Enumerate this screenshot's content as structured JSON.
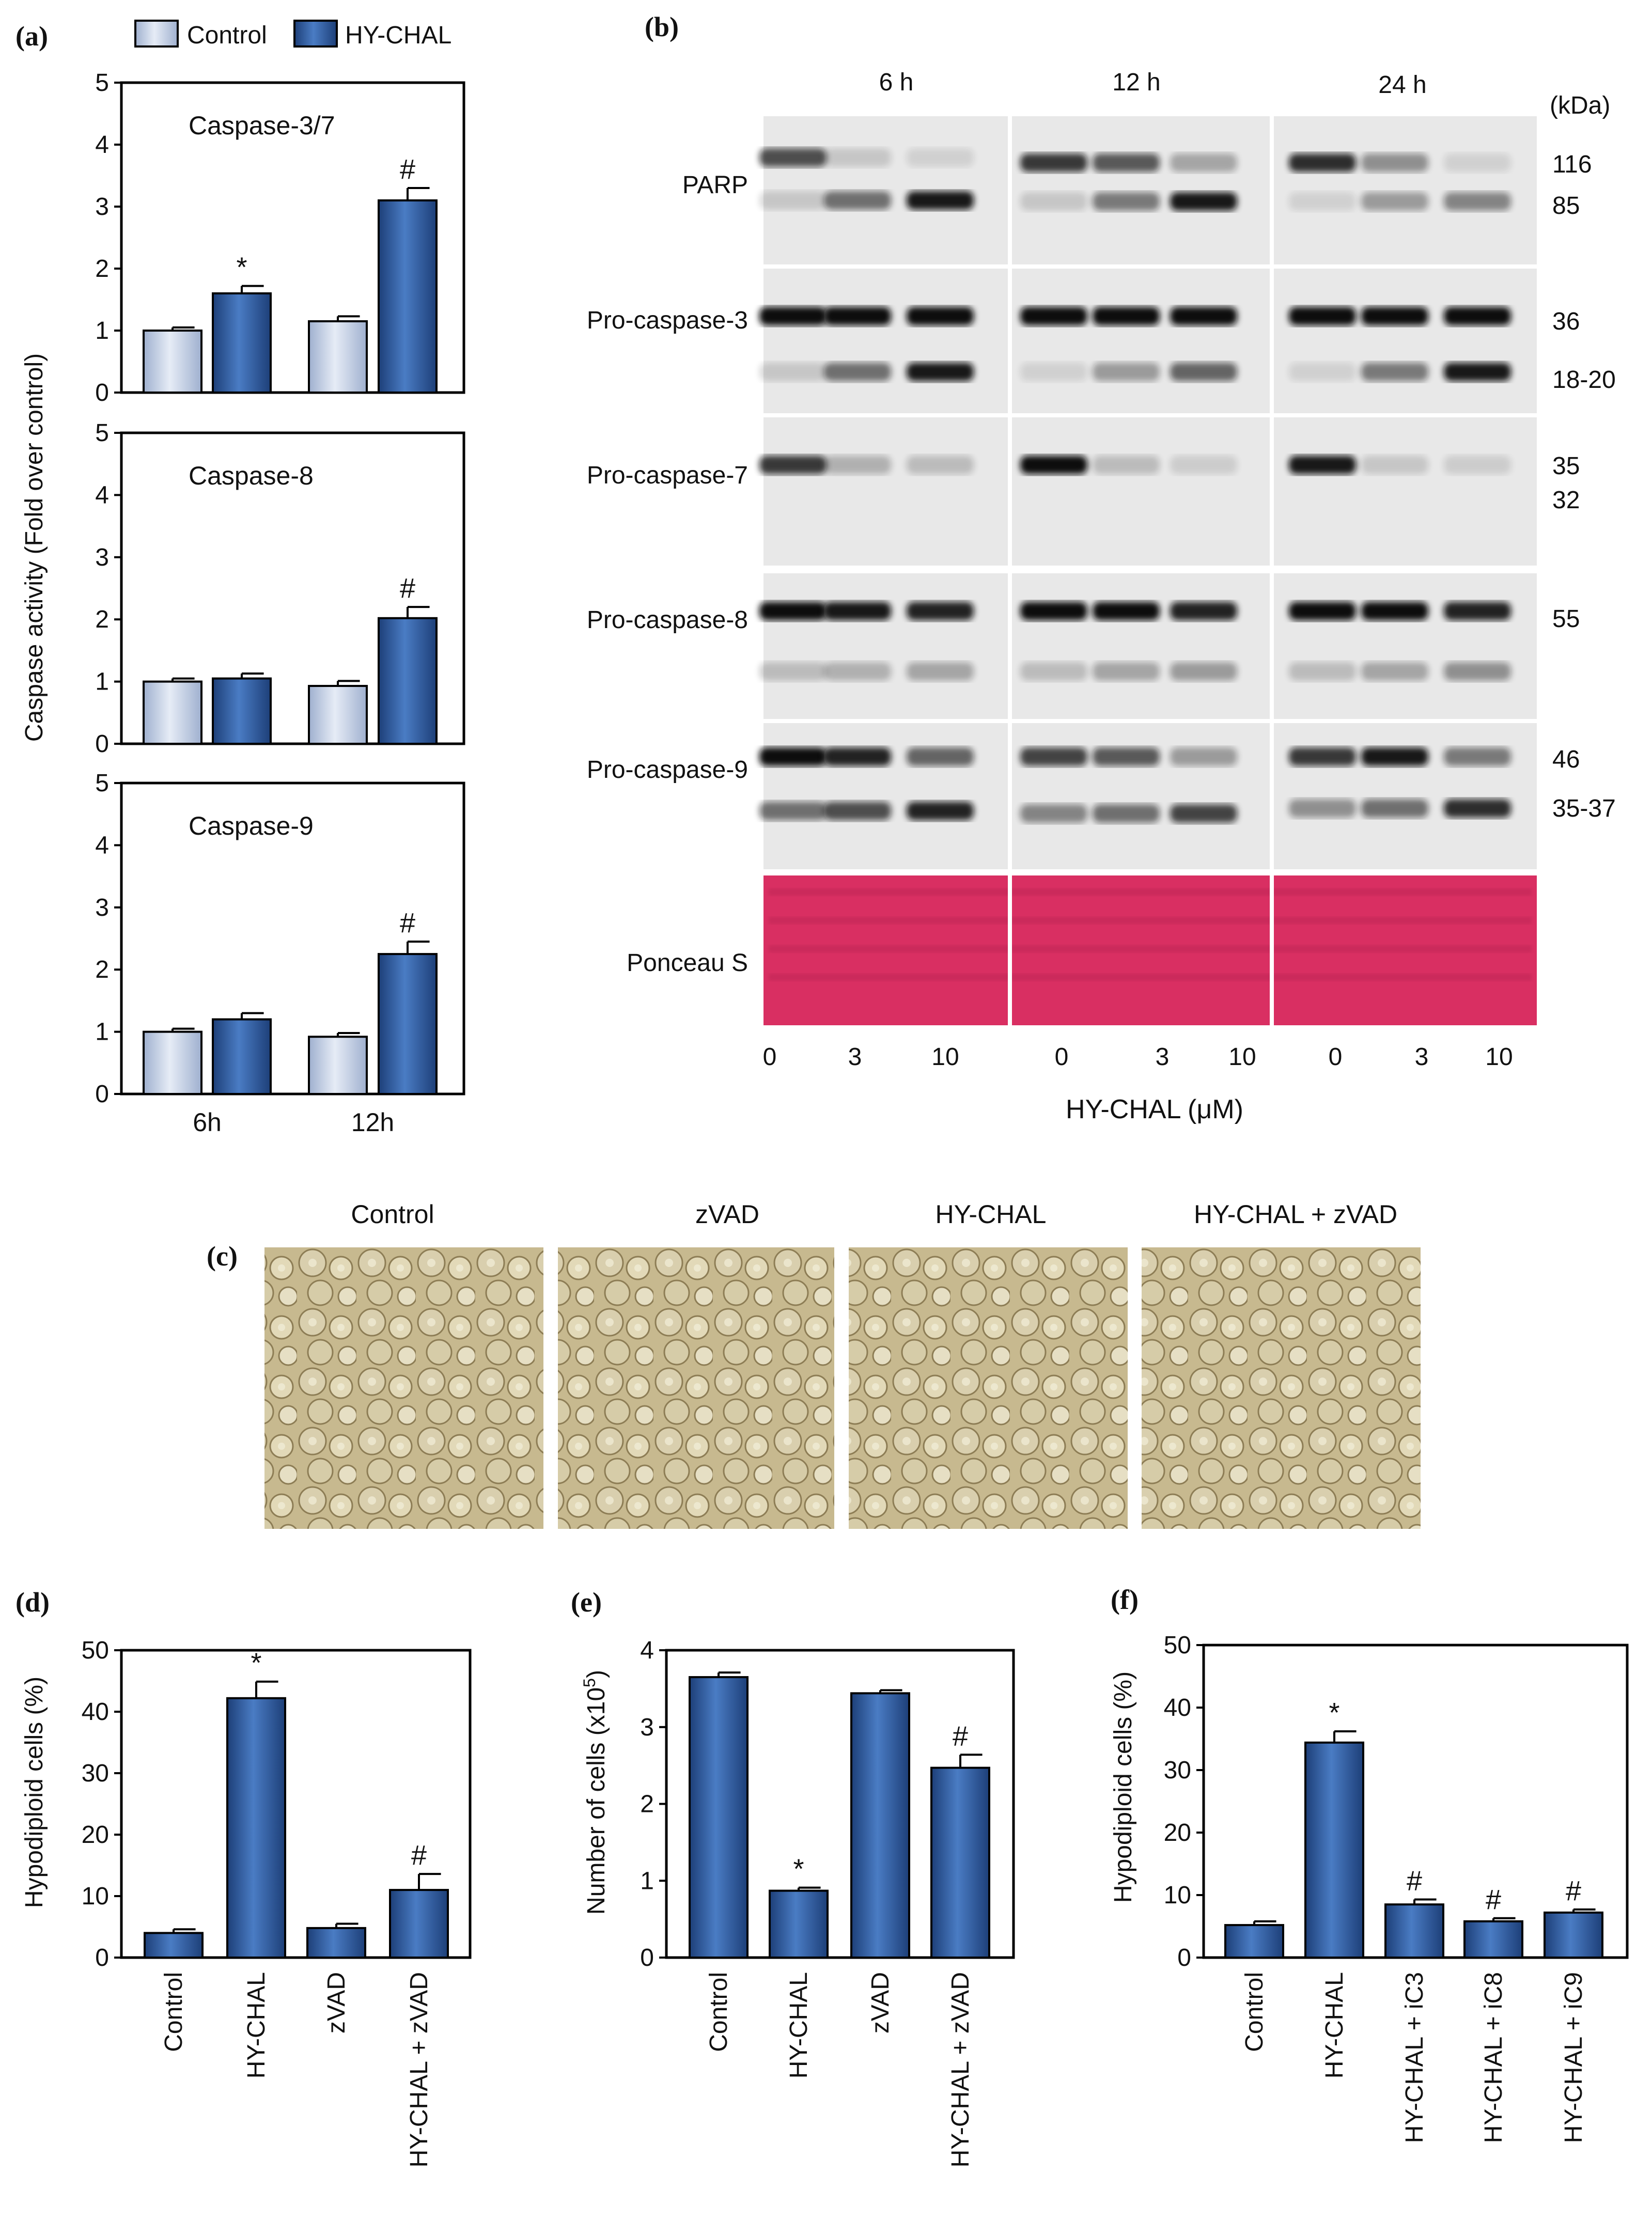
{
  "panel_labels": {
    "a": "(a)",
    "b": "(b)",
    "c": "(c)",
    "d": "(d)",
    "e": "(e)",
    "f": "(f)"
  },
  "colors": {
    "control_fill": "#c9d3e6",
    "hychal_fill": "#2f5b9f",
    "ponceau": "#d92f62",
    "blot_bg": "#e8e8e8"
  },
  "legend": {
    "control": "Control",
    "hychal": "HY-CHAL"
  },
  "panel_a": {
    "ylabel": "Caspase activity (Fold over control)",
    "x_labels": [
      "6h",
      "12h"
    ]
  },
  "panel_b": {
    "time_labels": [
      "6 h",
      "12 h",
      "24 h"
    ],
    "kda_label": "(kDa)",
    "rows": [
      {
        "name": "PARP",
        "kda": [
          "116",
          "85"
        ]
      },
      {
        "name": "Pro-caspase-3",
        "kda": [
          "36",
          "18-20"
        ]
      },
      {
        "name": "Pro-caspase-7",
        "kda": [
          "35",
          "32"
        ]
      },
      {
        "name": "Pro-caspase-8",
        "kda": [
          "55"
        ]
      },
      {
        "name": "Pro-caspase-9",
        "kda": [
          "46",
          "35-37"
        ]
      },
      {
        "name": "Ponceau S",
        "kda": []
      }
    ],
    "dose_labels": [
      "0",
      "3",
      "10",
      "0",
      "3",
      "10",
      "0",
      "3",
      "10"
    ],
    "xlabel": "HY-CHAL (μM)"
  },
  "panel_c": {
    "titles": [
      "Control",
      "zVAD",
      "HY-CHAL",
      "HY-CHAL + zVAD"
    ]
  },
  "chart_data": [
    {
      "id": "a1",
      "type": "bar",
      "annotation": "Caspase-3/7",
      "categories": [
        "6h",
        "12h"
      ],
      "series": [
        {
          "name": "Control",
          "values": [
            1.0,
            1.15
          ],
          "errors": [
            0.05,
            0.08
          ],
          "marks": [
            "",
            ""
          ]
        },
        {
          "name": "HY-CHAL",
          "values": [
            1.6,
            3.1
          ],
          "errors": [
            0.12,
            0.2
          ],
          "marks": [
            "*",
            "#"
          ]
        }
      ],
      "ylim": [
        0,
        5
      ],
      "yticks": [
        0,
        1,
        2,
        3,
        4,
        5
      ],
      "ylabel": "Caspase activity (Fold over control)"
    },
    {
      "id": "a2",
      "type": "bar",
      "annotation": "Caspase-8",
      "categories": [
        "6h",
        "12h"
      ],
      "series": [
        {
          "name": "Control",
          "values": [
            1.0,
            0.93
          ],
          "errors": [
            0.05,
            0.08
          ],
          "marks": [
            "",
            ""
          ]
        },
        {
          "name": "HY-CHAL",
          "values": [
            1.05,
            2.02
          ],
          "errors": [
            0.08,
            0.18
          ],
          "marks": [
            "",
            "#"
          ]
        }
      ],
      "ylim": [
        0,
        5
      ],
      "yticks": [
        0,
        1,
        2,
        3,
        4,
        5
      ]
    },
    {
      "id": "a3",
      "type": "bar",
      "annotation": "Caspase-9",
      "categories": [
        "6h",
        "12h"
      ],
      "series": [
        {
          "name": "Control",
          "values": [
            1.0,
            0.92
          ],
          "errors": [
            0.05,
            0.06
          ],
          "marks": [
            "",
            ""
          ]
        },
        {
          "name": "HY-CHAL",
          "values": [
            1.2,
            2.25
          ],
          "errors": [
            0.1,
            0.2
          ],
          "marks": [
            "",
            "#"
          ]
        }
      ],
      "ylim": [
        0,
        5
      ],
      "yticks": [
        0,
        1,
        2,
        3,
        4,
        5
      ],
      "xlabels": [
        "6h",
        "12h"
      ]
    },
    {
      "id": "d",
      "type": "bar",
      "categories": [
        "Control",
        "HY-CHAL",
        "zVAD",
        "HY-CHAL + zVAD"
      ],
      "values": [
        4.0,
        42.2,
        4.8,
        11.0
      ],
      "errors": [
        0.6,
        2.7,
        0.7,
        2.6
      ],
      "marks": [
        "",
        "*",
        "",
        "#"
      ],
      "ylim": [
        0,
        50
      ],
      "yticks": [
        0,
        10,
        20,
        30,
        40,
        50
      ],
      "ylabel": "Hypodiploid cells (%)"
    },
    {
      "id": "e",
      "type": "bar",
      "categories": [
        "Control",
        "HY-CHAL",
        "zVAD",
        "HY-CHAL + zVAD"
      ],
      "values": [
        3.65,
        0.87,
        3.44,
        2.47
      ],
      "errors": [
        0.06,
        0.04,
        0.04,
        0.17
      ],
      "marks": [
        "",
        "*",
        "",
        "#"
      ],
      "ylim": [
        0,
        4
      ],
      "yticks": [
        0,
        1,
        2,
        3,
        4
      ],
      "ylabel": "Number of cells (x10",
      "ylabel_sup": "5",
      "ylabel_end": ")"
    },
    {
      "id": "f",
      "type": "bar",
      "categories": [
        "Control",
        "HY-CHAL",
        "HY-CHAL + iC3",
        "HY-CHAL + iC8",
        "HY-CHAL + iC9"
      ],
      "values": [
        5.2,
        34.4,
        8.5,
        5.8,
        7.2
      ],
      "errors": [
        0.6,
        1.8,
        0.8,
        0.5,
        0.5
      ],
      "marks": [
        "",
        "*",
        "#",
        "#",
        "#"
      ],
      "ylim": [
        0,
        50
      ],
      "yticks": [
        0,
        10,
        20,
        30,
        40,
        50
      ],
      "ylabel": "Hypodiploid cells (%)"
    }
  ]
}
